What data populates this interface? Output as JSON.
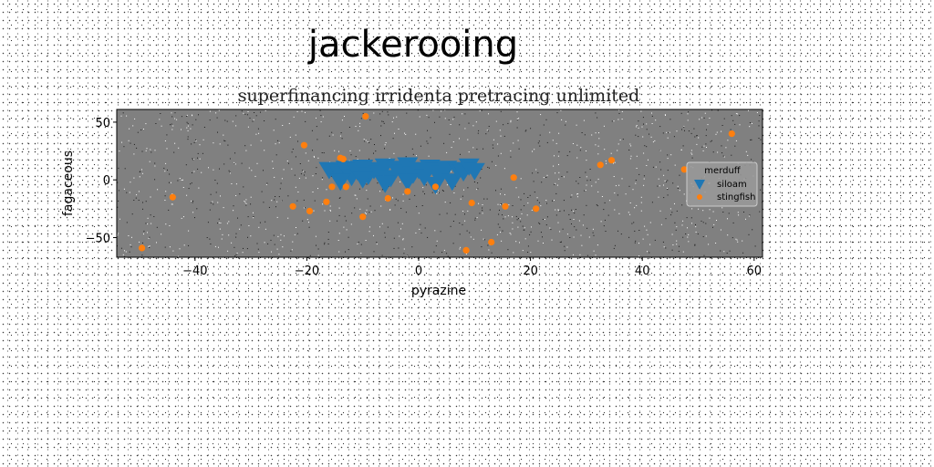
{
  "chart_data": {
    "type": "scatter",
    "suptitle": "jackerooing",
    "title": "superfinancing irridenta pretracing unlimited",
    "xlabel": "pyrazine",
    "ylabel": "fagaceous",
    "xlim": [
      -54,
      61.5
    ],
    "ylim": [
      -67,
      61
    ],
    "xticks": [
      -40,
      -20,
      0,
      20,
      40,
      60
    ],
    "yticks": [
      -50,
      0,
      50
    ],
    "grid": false,
    "legend": {
      "title": "merduff",
      "placement": "right"
    },
    "series": [
      {
        "name": "siloam",
        "marker": "triangle-down",
        "color": "#1f77b4",
        "points": [
          [
            -16,
            8
          ],
          [
            -15,
            6
          ],
          [
            -14,
            4
          ],
          [
            -13,
            9
          ],
          [
            -12,
            2
          ],
          [
            -11,
            7
          ],
          [
            -10,
            10
          ],
          [
            -9,
            3
          ],
          [
            -8,
            8
          ],
          [
            -7,
            5
          ],
          [
            -6,
            11
          ],
          [
            -5,
            1
          ],
          [
            -4,
            9
          ],
          [
            -3,
            6
          ],
          [
            -2,
            12
          ],
          [
            -1,
            4
          ],
          [
            0,
            8
          ],
          [
            1,
            2
          ],
          [
            2,
            10
          ],
          [
            3,
            7
          ],
          [
            4,
            5
          ],
          [
            5,
            9
          ],
          [
            6,
            -2
          ],
          [
            7,
            8
          ],
          [
            8,
            6
          ],
          [
            9,
            11
          ],
          [
            10,
            7
          ],
          [
            -14,
            -2
          ],
          [
            -10,
            0
          ],
          [
            -6,
            -4
          ],
          [
            -2,
            -2
          ],
          [
            3,
            -5
          ]
        ]
      },
      {
        "name": "stingfish",
        "marker": "circle",
        "color": "#ff7f0e",
        "points": [
          [
            -9.5,
            55
          ],
          [
            -20.5,
            30
          ],
          [
            -14,
            19
          ],
          [
            -13.5,
            18
          ],
          [
            -44,
            -15
          ],
          [
            -22.5,
            -23
          ],
          [
            -19.5,
            -27
          ],
          [
            -16.5,
            -19
          ],
          [
            -15.5,
            -6
          ],
          [
            -13,
            -6
          ],
          [
            -10,
            -32
          ],
          [
            -5.5,
            -16
          ],
          [
            -2,
            -10
          ],
          [
            3,
            -6
          ],
          [
            9.5,
            -20
          ],
          [
            15.5,
            -23
          ],
          [
            17,
            2
          ],
          [
            21,
            -25
          ],
          [
            32.5,
            13
          ],
          [
            34.5,
            17
          ],
          [
            47.5,
            9
          ],
          [
            56,
            40
          ],
          [
            8.5,
            -61
          ],
          [
            13,
            -54
          ],
          [
            -49.5,
            -59
          ]
        ]
      }
    ]
  }
}
